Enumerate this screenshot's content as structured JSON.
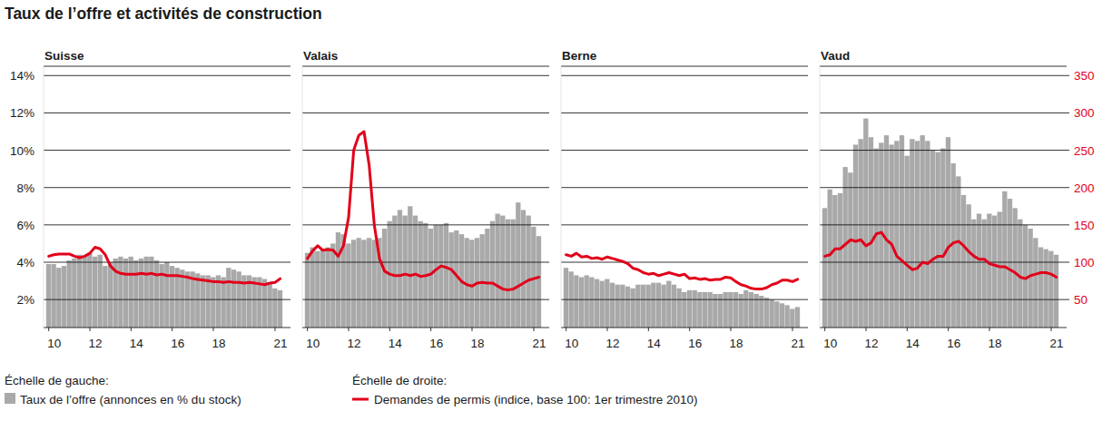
{
  "title": "Taux de l’offre et activités de construction",
  "annotations": [
    "Échelle de gauche:",
    "Échelle de droite:"
  ],
  "chart_data": [
    {
      "type": "bar",
      "title": "Suisse",
      "x": [
        2010,
        2010.25,
        2010.5,
        2010.75,
        2011,
        2011.25,
        2011.5,
        2011.75,
        2012,
        2012.25,
        2012.5,
        2012.75,
        2013,
        2013.25,
        2013.5,
        2013.75,
        2014,
        2014.25,
        2014.5,
        2014.75,
        2015,
        2015.25,
        2015.5,
        2015.75,
        2016,
        2016.25,
        2016.5,
        2016.75,
        2017,
        2017.25,
        2017.5,
        2017.75,
        2018,
        2018.25,
        2018.5,
        2018.75,
        2019,
        2019.25,
        2019.5,
        2019.75,
        2020,
        2020.25,
        2020.5,
        2020.75,
        2021,
        2021.25
      ],
      "xlim": [
        2009.75,
        2021.75
      ],
      "xticks": [
        {
          "value": 2010,
          "label": "10"
        },
        {
          "value": 2012,
          "label": "12"
        },
        {
          "value": 2014,
          "label": "14"
        },
        {
          "value": 2016,
          "label": "16"
        },
        {
          "value": 2018,
          "label": "18"
        },
        {
          "value": 2021,
          "label": "21"
        }
      ],
      "ylim": [
        0.5,
        14.5
      ],
      "yticks": [
        {
          "value": 2,
          "label": "2%"
        },
        {
          "value": 4,
          "label": "4%"
        },
        {
          "value": 6,
          "label": "6%"
        },
        {
          "value": 8,
          "label": "8%"
        },
        {
          "value": 10,
          "label": "10%"
        },
        {
          "value": 12,
          "label": "12%"
        },
        {
          "value": 14,
          "label": "14%"
        }
      ],
      "y2lim": [
        12.5,
        362.5
      ],
      "grid": true,
      "series": [
        {
          "name": "Taux de l’offre (annonces en % du stock)",
          "type": "bar",
          "color": "#a9a9a9",
          "values": [
            3.9,
            3.9,
            3.7,
            3.8,
            4.1,
            4.2,
            4.4,
            4.3,
            4.5,
            4.3,
            4.4,
            3.8,
            4.0,
            4.2,
            4.3,
            4.2,
            4.3,
            4.1,
            4.2,
            4.3,
            4.3,
            4.1,
            3.9,
            4.0,
            3.8,
            3.7,
            3.6,
            3.5,
            3.5,
            3.4,
            3.3,
            3.3,
            3.2,
            3.3,
            3.2,
            3.7,
            3.6,
            3.5,
            3.3,
            3.3,
            3.2,
            3.2,
            3.1,
            2.9,
            2.6,
            2.5
          ]
        },
        {
          "name": "Demandes de permis (indice, base 100: 1er trimestre 2010)",
          "type": "line",
          "color": "#e2001a",
          "axis": "y2",
          "values": [
            108,
            110,
            111,
            111,
            111,
            108,
            106,
            108,
            112,
            120,
            118,
            110,
            95,
            88,
            85,
            84,
            84,
            84,
            85,
            84,
            85,
            83,
            84,
            82,
            82,
            82,
            81,
            80,
            78,
            77,
            76,
            75,
            74,
            74,
            73,
            74,
            73,
            73,
            72,
            73,
            72,
            71,
            70,
            72,
            73,
            78
          ]
        }
      ]
    },
    {
      "type": "bar",
      "title": "Valais",
      "x": [
        2010,
        2010.25,
        2010.5,
        2010.75,
        2011,
        2011.25,
        2011.5,
        2011.75,
        2012,
        2012.25,
        2012.5,
        2012.75,
        2013,
        2013.25,
        2013.5,
        2013.75,
        2014,
        2014.25,
        2014.5,
        2014.75,
        2015,
        2015.25,
        2015.5,
        2015.75,
        2016,
        2016.25,
        2016.5,
        2016.75,
        2017,
        2017.25,
        2017.5,
        2017.75,
        2018,
        2018.25,
        2018.5,
        2018.75,
        2019,
        2019.25,
        2019.5,
        2019.75,
        2020,
        2020.25,
        2020.5,
        2020.75,
        2021,
        2021.25
      ],
      "xlim": [
        2009.75,
        2021.75
      ],
      "xticks": [
        {
          "value": 2010,
          "label": "10"
        },
        {
          "value": 2012,
          "label": "12"
        },
        {
          "value": 2014,
          "label": "14"
        },
        {
          "value": 2016,
          "label": "16"
        },
        {
          "value": 2018,
          "label": "18"
        },
        {
          "value": 2021,
          "label": "21"
        }
      ],
      "ylim": [
        0.5,
        14.5
      ],
      "yticks": [
        {
          "value": 2,
          "label": "2%"
        },
        {
          "value": 4,
          "label": "4%"
        },
        {
          "value": 6,
          "label": "6%"
        },
        {
          "value": 8,
          "label": "8%"
        },
        {
          "value": 10,
          "label": "10%"
        },
        {
          "value": 12,
          "label": "12%"
        },
        {
          "value": 14,
          "label": "14%"
        }
      ],
      "y2lim": [
        12.5,
        362.5
      ],
      "grid": true,
      "tick_labels": "x",
      "series": [
        {
          "name": "Taux de l’offre (annonces en % du stock)",
          "type": "bar",
          "color": "#a9a9a9",
          "values": [
            4.5,
            4.8,
            4.6,
            4.7,
            4.8,
            5.0,
            5.6,
            5.5,
            5.0,
            5.2,
            5.3,
            5.2,
            5.3,
            5.2,
            5.3,
            5.8,
            6.2,
            6.5,
            6.8,
            6.5,
            7.0,
            6.5,
            6.2,
            6.1,
            5.8,
            6.0,
            6.0,
            6.1,
            5.6,
            5.7,
            5.5,
            5.3,
            5.2,
            5.3,
            5.5,
            5.8,
            6.2,
            6.6,
            6.5,
            6.3,
            6.3,
            7.2,
            6.8,
            6.5,
            5.9,
            5.4
          ]
        },
        {
          "name": "Demandes de permis (indice, base 100: 1er trimestre 2010)",
          "type": "line",
          "color": "#e2001a",
          "axis": "y2",
          "values": [
            105,
            115,
            122,
            116,
            117,
            116,
            108,
            122,
            160,
            250,
            270,
            275,
            230,
            150,
            105,
            88,
            84,
            82,
            82,
            84,
            82,
            84,
            81,
            82,
            84,
            90,
            95,
            93,
            90,
            82,
            74,
            70,
            68,
            72,
            73,
            72,
            72,
            68,
            64,
            63,
            64,
            68,
            72,
            76,
            78,
            80
          ]
        }
      ]
    },
    {
      "type": "bar",
      "title": "Berne",
      "x": [
        2010,
        2010.25,
        2010.5,
        2010.75,
        2011,
        2011.25,
        2011.5,
        2011.75,
        2012,
        2012.25,
        2012.5,
        2012.75,
        2013,
        2013.25,
        2013.5,
        2013.75,
        2014,
        2014.25,
        2014.5,
        2014.75,
        2015,
        2015.25,
        2015.5,
        2015.75,
        2016,
        2016.25,
        2016.5,
        2016.75,
        2017,
        2017.25,
        2017.5,
        2017.75,
        2018,
        2018.25,
        2018.5,
        2018.75,
        2019,
        2019.25,
        2019.5,
        2019.75,
        2020,
        2020.25,
        2020.5,
        2020.75,
        2021,
        2021.25
      ],
      "xlim": [
        2009.75,
        2021.75
      ],
      "xticks": [
        {
          "value": 2010,
          "label": "10"
        },
        {
          "value": 2012,
          "label": "12"
        },
        {
          "value": 2014,
          "label": "14"
        },
        {
          "value": 2016,
          "label": "16"
        },
        {
          "value": 2018,
          "label": "18"
        },
        {
          "value": 2021,
          "label": "21"
        }
      ],
      "ylim": [
        0.5,
        14.5
      ],
      "yticks": [
        {
          "value": 2,
          "label": "2%"
        },
        {
          "value": 4,
          "label": "4%"
        },
        {
          "value": 6,
          "label": "6%"
        },
        {
          "value": 8,
          "label": "8%"
        },
        {
          "value": 10,
          "label": "10%"
        },
        {
          "value": 12,
          "label": "12%"
        },
        {
          "value": 14,
          "label": "14%"
        }
      ],
      "y2lim": [
        12.5,
        362.5
      ],
      "grid": true,
      "tick_labels": "x",
      "series": [
        {
          "name": "Taux de l’offre (annonces en % du stock)",
          "type": "bar",
          "color": "#a9a9a9",
          "values": [
            3.7,
            3.5,
            3.3,
            3.2,
            3.3,
            3.2,
            3.1,
            3.0,
            3.1,
            2.9,
            2.8,
            2.8,
            2.7,
            2.6,
            2.8,
            2.8,
            2.8,
            2.9,
            2.9,
            2.8,
            3.0,
            2.8,
            2.6,
            2.4,
            2.5,
            2.5,
            2.4,
            2.4,
            2.4,
            2.3,
            2.3,
            2.4,
            2.4,
            2.4,
            2.3,
            2.5,
            2.4,
            2.3,
            2.2,
            2.1,
            2.0,
            1.9,
            1.8,
            1.7,
            1.5,
            1.6
          ]
        },
        {
          "name": "Demandes de permis (indice, base 100: 1er trimestre 2010)",
          "type": "line",
          "color": "#e2001a",
          "axis": "y2",
          "values": [
            110,
            108,
            112,
            107,
            108,
            105,
            106,
            104,
            107,
            105,
            103,
            101,
            98,
            92,
            90,
            86,
            84,
            85,
            82,
            84,
            86,
            84,
            82,
            84,
            78,
            79,
            77,
            78,
            76,
            77,
            77,
            80,
            79,
            74,
            70,
            68,
            65,
            64,
            64,
            66,
            70,
            72,
            76,
            76,
            74,
            77
          ]
        }
      ]
    },
    {
      "type": "bar",
      "title": "Vaud",
      "x": [
        2010,
        2010.25,
        2010.5,
        2010.75,
        2011,
        2011.25,
        2011.5,
        2011.75,
        2012,
        2012.25,
        2012.5,
        2012.75,
        2013,
        2013.25,
        2013.5,
        2013.75,
        2014,
        2014.25,
        2014.5,
        2014.75,
        2015,
        2015.25,
        2015.5,
        2015.75,
        2016,
        2016.25,
        2016.5,
        2016.75,
        2017,
        2017.25,
        2017.5,
        2017.75,
        2018,
        2018.25,
        2018.5,
        2018.75,
        2019,
        2019.25,
        2019.5,
        2019.75,
        2020,
        2020.25,
        2020.5,
        2020.75,
        2021,
        2021.25
      ],
      "xlim": [
        2009.75,
        2021.75
      ],
      "xticks": [
        {
          "value": 2010,
          "label": "10"
        },
        {
          "value": 2012,
          "label": "12"
        },
        {
          "value": 2014,
          "label": "14"
        },
        {
          "value": 2016,
          "label": "16"
        },
        {
          "value": 2018,
          "label": "18"
        },
        {
          "value": 2021,
          "label": "21"
        }
      ],
      "ylim": [
        0.5,
        14.5
      ],
      "yticks": [
        {
          "value": 2,
          "label": "2%"
        },
        {
          "value": 4,
          "label": "4%"
        },
        {
          "value": 6,
          "label": "6%"
        },
        {
          "value": 8,
          "label": "8%"
        },
        {
          "value": 10,
          "label": "10%"
        },
        {
          "value": 12,
          "label": "12%"
        },
        {
          "value": 14,
          "label": "14%"
        }
      ],
      "y2lim": [
        12.5,
        362.5
      ],
      "y2ticks": [
        50,
        100,
        150,
        200,
        250,
        300,
        350
      ],
      "grid": true,
      "tick_labels": "x",
      "series": [
        {
          "name": "Taux de l’offre (annonces en % du stock)",
          "type": "bar",
          "color": "#a9a9a9",
          "values": [
            6.9,
            7.9,
            7.6,
            7.7,
            9.1,
            8.8,
            10.3,
            10.6,
            11.7,
            10.7,
            10.1,
            10.4,
            10.8,
            10.3,
            10.5,
            10.8,
            9.7,
            10.6,
            10.5,
            10.8,
            10.5,
            10.0,
            9.9,
            10.1,
            10.7,
            9.3,
            8.6,
            7.6,
            7.1,
            6.3,
            6.6,
            6.3,
            6.6,
            6.5,
            6.7,
            7.8,
            7.4,
            6.9,
            6.3,
            6.0,
            5.8,
            5.3,
            4.8,
            4.7,
            4.6,
            4.4
          ]
        },
        {
          "name": "Demandes de permis (indice, base 100: 1er trimestre 2010)",
          "type": "line",
          "color": "#e2001a",
          "axis": "y2",
          "values": [
            108,
            110,
            118,
            118,
            124,
            130,
            128,
            130,
            122,
            126,
            138,
            140,
            130,
            124,
            108,
            102,
            96,
            90,
            92,
            100,
            98,
            104,
            108,
            108,
            120,
            126,
            128,
            122,
            114,
            108,
            104,
            104,
            98,
            96,
            94,
            94,
            90,
            86,
            80,
            78,
            82,
            84,
            86,
            86,
            84,
            80
          ]
        }
      ]
    }
  ]
}
